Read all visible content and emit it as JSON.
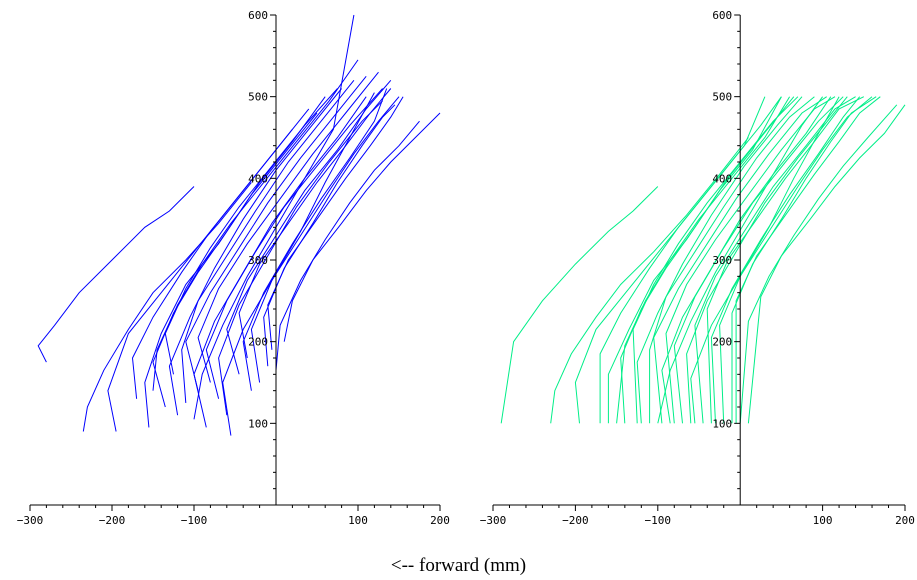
{
  "caption": "<--  forward (mm)",
  "chart_data": [
    {
      "type": "line",
      "name": "raw-trajectories",
      "color": "#0000ff",
      "xlim": [
        -300,
        200
      ],
      "ylim": [
        0,
        600
      ],
      "xticks": [
        -300,
        -200,
        -100,
        100,
        200
      ],
      "yticks": [
        100,
        200,
        300,
        400,
        500,
        600
      ],
      "grid": false,
      "series": [
        {
          "x": [
            -280,
            -290,
            -270,
            -240,
            -200,
            -160,
            -130,
            -100
          ],
          "y": [
            175,
            195,
            220,
            260,
            300,
            340,
            360,
            390
          ]
        },
        {
          "x": [
            -235,
            -230,
            -210,
            -180,
            -150,
            -110,
            -70,
            -30
          ],
          "y": [
            90,
            120,
            165,
            215,
            260,
            300,
            345,
            395
          ]
        },
        {
          "x": [
            -195,
            -205,
            -180,
            -140,
            -100,
            -60,
            -20,
            20
          ],
          "y": [
            90,
            140,
            210,
            260,
            310,
            360,
            410,
            460
          ]
        },
        {
          "x": [
            -155,
            -160,
            -140,
            -110,
            -70,
            -30,
            10,
            50
          ],
          "y": [
            95,
            150,
            210,
            270,
            320,
            380,
            430,
            480
          ]
        },
        {
          "x": [
            -135,
            -150,
            -125,
            -95,
            -60,
            -20,
            20,
            60
          ],
          "y": [
            120,
            175,
            235,
            285,
            335,
            395,
            445,
            500
          ]
        },
        {
          "x": [
            -120,
            -130,
            -105,
            -75,
            -40,
            0,
            40,
            80
          ],
          "y": [
            110,
            170,
            230,
            290,
            350,
            410,
            460,
            510
          ]
        },
        {
          "x": [
            -110,
            -115,
            -95,
            -60,
            -25,
            15,
            55,
            95
          ],
          "y": [
            125,
            190,
            250,
            305,
            360,
            420,
            470,
            520
          ]
        },
        {
          "x": [
            -95,
            -110,
            -80,
            -45,
            -10,
            30,
            70,
            110
          ],
          "y": [
            140,
            200,
            260,
            315,
            370,
            425,
            475,
            525
          ]
        },
        {
          "x": [
            -80,
            -95,
            -70,
            -35,
            5,
            45,
            85,
            125
          ],
          "y": [
            150,
            205,
            265,
            320,
            375,
            430,
            480,
            530
          ]
        },
        {
          "x": [
            -70,
            -85,
            -60,
            -25,
            10,
            50,
            90,
            130
          ],
          "y": [
            130,
            190,
            250,
            310,
            365,
            415,
            465,
            510
          ]
        },
        {
          "x": [
            -60,
            -70,
            -45,
            -10,
            25,
            65,
            105,
            130
          ],
          "y": [
            110,
            180,
            245,
            305,
            365,
            420,
            470,
            495
          ]
        },
        {
          "x": [
            -45,
            -60,
            -35,
            0,
            35,
            75,
            110,
            140
          ],
          "y": [
            160,
            215,
            275,
            330,
            385,
            435,
            485,
            520
          ]
        },
        {
          "x": [
            -35,
            -45,
            -20,
            15,
            50,
            85,
            115,
            140
          ],
          "y": [
            180,
            235,
            295,
            345,
            395,
            440,
            480,
            510
          ]
        },
        {
          "x": [
            -20,
            -30,
            -5,
            30,
            65,
            95,
            125,
            150
          ],
          "y": [
            150,
            215,
            275,
            330,
            385,
            430,
            470,
            500
          ]
        },
        {
          "x": [
            -10,
            -15,
            10,
            45,
            75,
            105,
            130,
            145
          ],
          "y": [
            170,
            230,
            290,
            345,
            395,
            440,
            475,
            490
          ]
        },
        {
          "x": [
            0,
            5,
            30,
            60,
            90,
            120,
            150,
            175
          ],
          "y": [
            165,
            220,
            275,
            325,
            370,
            410,
            440,
            470
          ]
        },
        {
          "x": [
            10,
            20,
            45,
            80,
            110,
            140,
            170,
            200
          ],
          "y": [
            200,
            250,
            300,
            345,
            385,
            420,
            450,
            480
          ]
        },
        {
          "x": [
            -150,
            -145,
            -120,
            -90,
            -55,
            -15,
            25,
            65,
            100
          ],
          "y": [
            140,
            190,
            245,
            295,
            345,
            395,
            445,
            495,
            545
          ]
        },
        {
          "x": [
            -100,
            -90,
            -65,
            -35,
            0,
            35,
            70,
            95
          ],
          "y": [
            105,
            160,
            220,
            280,
            340,
            400,
            460,
            600
          ]
        },
        {
          "x": [
            -170,
            -175,
            -150,
            -115,
            -80,
            -40,
            0,
            40
          ],
          "y": [
            130,
            180,
            230,
            285,
            335,
            385,
            435,
            485
          ]
        },
        {
          "x": [
            -55,
            -65,
            -40,
            -5,
            30,
            60,
            90,
            120
          ],
          "y": [
            85,
            150,
            215,
            275,
            335,
            395,
            450,
            505
          ]
        },
        {
          "x": [
            -125,
            -135,
            -110,
            -80,
            -45,
            -5,
            35,
            75
          ],
          "y": [
            160,
            210,
            265,
            315,
            365,
            415,
            465,
            510
          ]
        },
        {
          "x": [
            -85,
            -100,
            -75,
            -40,
            -5,
            35,
            75,
            110
          ],
          "y": [
            95,
            160,
            225,
            285,
            345,
            400,
            450,
            500
          ]
        },
        {
          "x": [
            -30,
            -40,
            -15,
            20,
            55,
            90,
            120,
            135
          ],
          "y": [
            140,
            200,
            260,
            320,
            375,
            425,
            470,
            510
          ]
        },
        {
          "x": [
            -5,
            -10,
            15,
            50,
            85,
            115,
            140,
            155
          ],
          "y": [
            190,
            245,
            300,
            350,
            400,
            440,
            475,
            500
          ]
        }
      ]
    },
    {
      "type": "line",
      "name": "clipped-trajectories",
      "color": "#00ee88",
      "xlim": [
        -300,
        200
      ],
      "ylim": [
        0,
        600
      ],
      "xticks": [
        -300,
        -200,
        -100,
        100,
        200
      ],
      "yticks": [
        100,
        200,
        300,
        400,
        500,
        600
      ],
      "grid": false,
      "series": [
        {
          "x": [
            -290,
            -275,
            -240,
            -200,
            -160,
            -130,
            -100
          ],
          "y": [
            100,
            200,
            250,
            295,
            335,
            360,
            390
          ]
        },
        {
          "x": [
            -230,
            -225,
            -205,
            -175,
            -145,
            -105,
            -65,
            -25,
            10
          ],
          "y": [
            100,
            140,
            185,
            230,
            270,
            310,
            355,
            405,
            450
          ]
        },
        {
          "x": [
            -195,
            -200,
            -175,
            -135,
            -95,
            -55,
            -15,
            25,
            50
          ],
          "y": [
            100,
            150,
            215,
            265,
            315,
            365,
            415,
            465,
            500
          ]
        },
        {
          "x": [
            -160,
            -160,
            -135,
            -105,
            -65,
            -25,
            15,
            50
          ],
          "y": [
            100,
            160,
            215,
            275,
            325,
            385,
            435,
            500
          ]
        },
        {
          "x": [
            -140,
            -145,
            -120,
            -90,
            -55,
            -15,
            25,
            65
          ],
          "y": [
            100,
            180,
            240,
            290,
            340,
            400,
            450,
            500
          ]
        },
        {
          "x": [
            -120,
            -125,
            -100,
            -70,
            -35,
            5,
            45,
            75
          ],
          "y": [
            100,
            175,
            235,
            295,
            355,
            415,
            465,
            500
          ]
        },
        {
          "x": [
            -110,
            -110,
            -90,
            -55,
            -20,
            20,
            60,
            90
          ],
          "y": [
            100,
            190,
            255,
            310,
            365,
            425,
            475,
            500
          ]
        },
        {
          "x": [
            -95,
            -105,
            -75,
            -40,
            -5,
            35,
            75,
            105
          ],
          "y": [
            100,
            205,
            265,
            320,
            375,
            430,
            480,
            500
          ]
        },
        {
          "x": [
            -80,
            -90,
            -65,
            -30,
            10,
            50,
            90,
            115
          ],
          "y": [
            100,
            210,
            270,
            325,
            380,
            435,
            485,
            500
          ]
        },
        {
          "x": [
            -70,
            -80,
            -55,
            -20,
            15,
            55,
            95,
            125
          ],
          "y": [
            100,
            195,
            255,
            315,
            370,
            420,
            470,
            500
          ]
        },
        {
          "x": [
            -60,
            -65,
            -40,
            -5,
            30,
            70,
            110,
            130
          ],
          "y": [
            100,
            185,
            250,
            310,
            370,
            425,
            475,
            500
          ]
        },
        {
          "x": [
            -45,
            -55,
            -30,
            5,
            40,
            80,
            115,
            140
          ],
          "y": [
            100,
            220,
            280,
            335,
            390,
            440,
            485,
            500
          ]
        },
        {
          "x": [
            -35,
            -40,
            -15,
            20,
            55,
            90,
            120,
            150
          ],
          "y": [
            100,
            240,
            300,
            350,
            400,
            445,
            485,
            500
          ]
        },
        {
          "x": [
            -20,
            -25,
            0,
            35,
            70,
            100,
            130,
            160
          ],
          "y": [
            100,
            220,
            280,
            335,
            390,
            435,
            475,
            500
          ]
        },
        {
          "x": [
            -10,
            -10,
            15,
            50,
            80,
            110,
            135,
            165
          ],
          "y": [
            100,
            235,
            295,
            350,
            400,
            445,
            480,
            500
          ]
        },
        {
          "x": [
            0,
            10,
            35,
            65,
            95,
            125,
            155,
            190
          ],
          "y": [
            100,
            225,
            280,
            330,
            375,
            415,
            450,
            490
          ]
        },
        {
          "x": [
            10,
            25,
            50,
            85,
            115,
            145,
            175,
            200
          ],
          "y": [
            100,
            255,
            305,
            350,
            390,
            425,
            455,
            490
          ]
        },
        {
          "x": [
            -150,
            -140,
            -115,
            -85,
            -50,
            -10,
            30,
            60
          ],
          "y": [
            100,
            195,
            250,
            300,
            350,
            400,
            450,
            500
          ]
        },
        {
          "x": [
            -100,
            -85,
            -60,
            -30,
            5,
            40,
            75,
            100
          ],
          "y": [
            100,
            165,
            225,
            285,
            345,
            405,
            465,
            500
          ]
        },
        {
          "x": [
            -170,
            -170,
            -145,
            -110,
            -75,
            -35,
            5,
            30
          ],
          "y": [
            100,
            185,
            235,
            290,
            340,
            390,
            440,
            500
          ]
        },
        {
          "x": [
            -55,
            -60,
            -35,
            0,
            35,
            65,
            95,
            120
          ],
          "y": [
            100,
            155,
            220,
            280,
            340,
            400,
            455,
            500
          ]
        },
        {
          "x": [
            -125,
            -130,
            -105,
            -75,
            -40,
            0,
            40,
            70
          ],
          "y": [
            100,
            215,
            270,
            320,
            370,
            420,
            470,
            500
          ]
        },
        {
          "x": [
            -85,
            -95,
            -70,
            -35,
            0,
            40,
            80,
            110
          ],
          "y": [
            100,
            165,
            230,
            290,
            350,
            405,
            455,
            500
          ]
        },
        {
          "x": [
            -30,
            -35,
            -10,
            25,
            60,
            95,
            125,
            145
          ],
          "y": [
            100,
            205,
            265,
            325,
            380,
            430,
            475,
            500
          ]
        },
        {
          "x": [
            -5,
            -5,
            20,
            55,
            90,
            120,
            145,
            170
          ],
          "y": [
            100,
            250,
            305,
            355,
            405,
            445,
            480,
            500
          ]
        }
      ]
    }
  ]
}
